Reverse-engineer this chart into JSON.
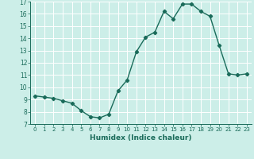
{
  "x": [
    0,
    1,
    2,
    3,
    4,
    5,
    6,
    7,
    8,
    9,
    10,
    11,
    12,
    13,
    14,
    15,
    16,
    17,
    18,
    19,
    20,
    21,
    22,
    23
  ],
  "y": [
    9.3,
    9.2,
    9.1,
    8.9,
    8.7,
    8.1,
    7.6,
    7.5,
    7.8,
    9.7,
    10.6,
    12.9,
    14.1,
    14.5,
    16.2,
    15.6,
    16.8,
    16.8,
    16.2,
    15.8,
    13.4,
    11.1,
    11.0,
    11.1
  ],
  "xlim": [
    -0.5,
    23.5
  ],
  "ylim": [
    7,
    17
  ],
  "yticks": [
    7,
    8,
    9,
    10,
    11,
    12,
    13,
    14,
    15,
    16,
    17
  ],
  "xticks": [
    0,
    1,
    2,
    3,
    4,
    5,
    6,
    7,
    8,
    9,
    10,
    11,
    12,
    13,
    14,
    15,
    16,
    17,
    18,
    19,
    20,
    21,
    22,
    23
  ],
  "xlabel": "Humidex (Indice chaleur)",
  "line_color": "#1a6b5a",
  "marker": "D",
  "marker_size": 2.2,
  "bg_color": "#cceee8",
  "grid_color": "#ffffff",
  "title": ""
}
